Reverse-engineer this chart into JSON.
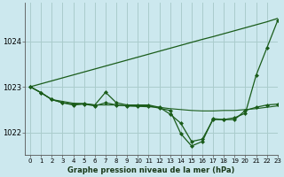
{
  "title": "Graphe pression niveau de la mer (hPa)",
  "background_color": "#cce8ee",
  "grid_color": "#aacccc",
  "xlim": [
    -0.5,
    23
  ],
  "ylim": [
    1021.5,
    1024.85
  ],
  "yticks": [
    1022,
    1023,
    1024
  ],
  "xticks": [
    0,
    1,
    2,
    3,
    4,
    5,
    6,
    7,
    8,
    9,
    10,
    11,
    12,
    13,
    14,
    15,
    16,
    17,
    18,
    19,
    20,
    21,
    22,
    23
  ],
  "line_color": "#1a5c1a",
  "series_trend": [
    1023.0,
    1023.065,
    1023.13,
    1023.195,
    1023.26,
    1023.325,
    1023.39,
    1023.455,
    1023.52,
    1023.585,
    1023.65,
    1023.715,
    1023.78,
    1023.845,
    1023.91,
    1023.975,
    1024.04,
    1024.1,
    1024.165,
    1024.23,
    1024.295,
    1024.36,
    1024.425,
    1024.5
  ],
  "series_flat": [
    1023.0,
    1022.87,
    1022.72,
    1022.68,
    1022.64,
    1022.63,
    1022.6,
    1022.6,
    1022.6,
    1022.58,
    1022.57,
    1022.56,
    1022.55,
    1022.52,
    1022.5,
    1022.48,
    1022.47,
    1022.47,
    1022.48,
    1022.48,
    1022.5,
    1022.52,
    1022.55,
    1022.58
  ],
  "series_deep": [
    1023.0,
    1022.87,
    1022.72,
    1022.65,
    1022.62,
    1022.63,
    1022.6,
    1022.88,
    1022.65,
    1022.6,
    1022.6,
    1022.6,
    1022.55,
    1022.4,
    1022.2,
    1021.8,
    1021.85,
    1022.28,
    1022.28,
    1022.32,
    1022.42,
    1023.25,
    1023.85,
    1024.45
  ],
  "series_mid": [
    1023.0,
    1022.87,
    1022.72,
    1022.65,
    1022.6,
    1022.62,
    1022.58,
    1022.65,
    1022.6,
    1022.58,
    1022.58,
    1022.58,
    1022.53,
    1022.48,
    1021.97,
    1021.7,
    1021.8,
    1022.3,
    1022.28,
    1022.28,
    1022.48,
    1022.55,
    1022.6,
    1022.62
  ]
}
